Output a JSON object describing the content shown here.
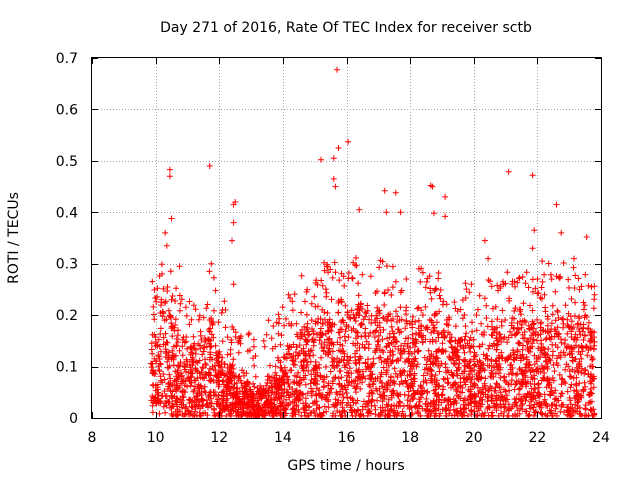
{
  "chart_data": {
    "type": "scatter",
    "title": "Day 271 of 2016, Rate Of TEC Index for receiver sctb",
    "xlabel": "GPS time / hours",
    "ylabel": "ROTI / TECUs",
    "xlim": [
      8,
      24
    ],
    "ylim": [
      0,
      0.7
    ],
    "x_ticks": [
      8,
      10,
      12,
      14,
      16,
      18,
      20,
      22,
      24
    ],
    "x_tick_labels": [
      "8",
      "10",
      "12",
      "14",
      "16",
      "18",
      "20",
      "22",
      "24"
    ],
    "y_ticks": [
      0,
      0.1,
      0.2,
      0.3,
      0.4,
      0.5,
      0.6,
      0.7
    ],
    "y_tick_labels": [
      "0",
      "0.1",
      "0.2",
      "0.3",
      "0.4",
      "0.5",
      "0.6",
      "0.7"
    ],
    "grid": true,
    "marker": "+",
    "colors": {
      "points": "#ff0000",
      "grid": "#a0a0a0",
      "axis": "#000000"
    },
    "data_start_hour": 9.85,
    "data_end_hour": 23.8,
    "envelope": [
      {
        "x": 9.85,
        "y": 0.18
      },
      {
        "x": 10.2,
        "y": 0.22
      },
      {
        "x": 10.5,
        "y": 0.2
      },
      {
        "x": 10.8,
        "y": 0.16
      },
      {
        "x": 11.2,
        "y": 0.14
      },
      {
        "x": 11.7,
        "y": 0.2
      },
      {
        "x": 12.0,
        "y": 0.14
      },
      {
        "x": 12.4,
        "y": 0.1
      },
      {
        "x": 12.8,
        "y": 0.07
      },
      {
        "x": 13.2,
        "y": 0.06
      },
      {
        "x": 13.6,
        "y": 0.08
      },
      {
        "x": 14.0,
        "y": 0.12
      },
      {
        "x": 14.5,
        "y": 0.17
      },
      {
        "x": 15.0,
        "y": 0.2
      },
      {
        "x": 15.5,
        "y": 0.21
      },
      {
        "x": 16.0,
        "y": 0.22
      },
      {
        "x": 16.5,
        "y": 0.22
      },
      {
        "x": 17.0,
        "y": 0.21
      },
      {
        "x": 17.5,
        "y": 0.2
      },
      {
        "x": 18.0,
        "y": 0.19
      },
      {
        "x": 18.5,
        "y": 0.2
      },
      {
        "x": 19.0,
        "y": 0.17
      },
      {
        "x": 19.5,
        "y": 0.16
      },
      {
        "x": 20.0,
        "y": 0.16
      },
      {
        "x": 20.5,
        "y": 0.18
      },
      {
        "x": 21.0,
        "y": 0.19
      },
      {
        "x": 21.5,
        "y": 0.2
      },
      {
        "x": 22.0,
        "y": 0.19
      },
      {
        "x": 22.5,
        "y": 0.21
      },
      {
        "x": 23.0,
        "y": 0.2
      },
      {
        "x": 23.5,
        "y": 0.18
      },
      {
        "x": 23.8,
        "y": 0.16
      }
    ],
    "outliers": [
      {
        "x": 15.7,
        "y": 0.677
      },
      {
        "x": 16.05,
        "y": 0.537
      },
      {
        "x": 15.75,
        "y": 0.525
      },
      {
        "x": 15.2,
        "y": 0.502
      },
      {
        "x": 15.6,
        "y": 0.505
      },
      {
        "x": 11.7,
        "y": 0.49
      },
      {
        "x": 10.45,
        "y": 0.483
      },
      {
        "x": 10.45,
        "y": 0.47
      },
      {
        "x": 21.1,
        "y": 0.479
      },
      {
        "x": 21.85,
        "y": 0.472
      },
      {
        "x": 15.6,
        "y": 0.465
      },
      {
        "x": 15.65,
        "y": 0.45
      },
      {
        "x": 18.65,
        "y": 0.452
      },
      {
        "x": 18.7,
        "y": 0.45
      },
      {
        "x": 17.2,
        "y": 0.442
      },
      {
        "x": 17.55,
        "y": 0.438
      },
      {
        "x": 19.1,
        "y": 0.43
      },
      {
        "x": 12.5,
        "y": 0.42
      },
      {
        "x": 12.45,
        "y": 0.415
      },
      {
        "x": 22.6,
        "y": 0.415
      },
      {
        "x": 16.4,
        "y": 0.405
      },
      {
        "x": 17.25,
        "y": 0.4
      },
      {
        "x": 17.7,
        "y": 0.4
      },
      {
        "x": 19.1,
        "y": 0.392
      },
      {
        "x": 18.75,
        "y": 0.398
      },
      {
        "x": 10.5,
        "y": 0.388
      },
      {
        "x": 12.45,
        "y": 0.38
      },
      {
        "x": 10.3,
        "y": 0.36
      },
      {
        "x": 21.9,
        "y": 0.365
      },
      {
        "x": 22.75,
        "y": 0.36
      },
      {
        "x": 23.55,
        "y": 0.352
      },
      {
        "x": 12.4,
        "y": 0.345
      },
      {
        "x": 20.35,
        "y": 0.345
      },
      {
        "x": 10.35,
        "y": 0.335
      },
      {
        "x": 21.85,
        "y": 0.33
      },
      {
        "x": 23.15,
        "y": 0.31
      },
      {
        "x": 20.45,
        "y": 0.31
      },
      {
        "x": 11.75,
        "y": 0.3
      },
      {
        "x": 10.75,
        "y": 0.295
      },
      {
        "x": 22.15,
        "y": 0.305
      },
      {
        "x": 10.2,
        "y": 0.28
      },
      {
        "x": 23.7,
        "y": 0.255
      },
      {
        "x": 12.45,
        "y": 0.26
      },
      {
        "x": 22.45,
        "y": 0.27
      },
      {
        "x": 13.55,
        "y": 0.19
      },
      {
        "x": 13.4,
        "y": 0.15
      },
      {
        "x": 12.9,
        "y": 0.13
      }
    ]
  }
}
